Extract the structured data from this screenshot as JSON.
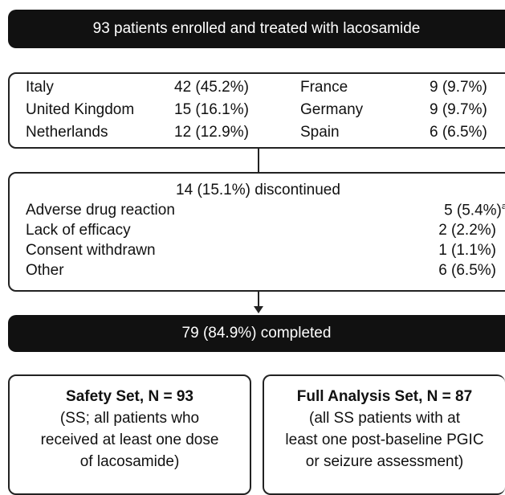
{
  "enrolled": "93 patients enrolled and treated with lacosamide",
  "countries": [
    [
      "Italy",
      "42 (45.2%)",
      "France",
      "9 (9.7%)"
    ],
    [
      "United Kingdom",
      "15 (16.1%)",
      "Germany",
      "9 (9.7%)"
    ],
    [
      "Netherlands",
      "12 (12.9%)",
      "Spain",
      "6 (6.5%)"
    ]
  ],
  "discontinued": {
    "title": "14 (15.1%) discontinued",
    "reasons": [
      {
        "label": "Adverse drug reaction",
        "value": "5 (5.4%)",
        "footnote": "a"
      },
      {
        "label": "Lack of efficacy",
        "value": "2 (2.2%)"
      },
      {
        "label": "Consent withdrawn",
        "value": "1 (1.1%)"
      },
      {
        "label": "Other",
        "value": "6 (6.5%)"
      }
    ]
  },
  "completed": "79 (84.9%) completed",
  "sets": [
    {
      "title": "Safety Set, N = 93",
      "lines": [
        "(SS; all patients who",
        "received at least one dose",
        "of lacosamide)"
      ]
    },
    {
      "title": "Full Analysis Set, N = 87",
      "lines": [
        "(all SS patients with at",
        "least one post-baseline PGIC",
        "or seizure assessment)"
      ]
    }
  ]
}
